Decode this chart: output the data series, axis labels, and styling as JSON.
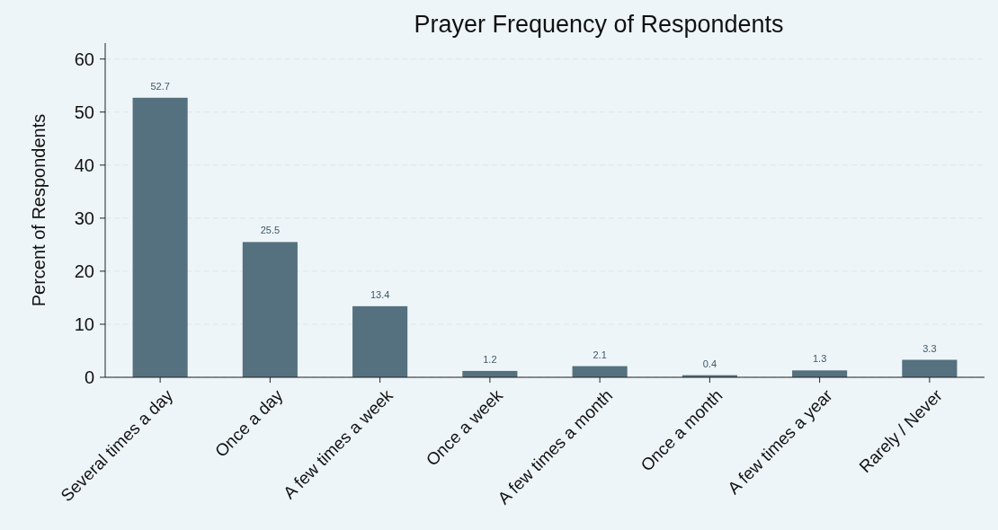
{
  "chart_data": {
    "type": "bar",
    "title": "Prayer Frequency of Respondents",
    "ylabel": "Percent of Respondents",
    "categories": [
      "Several times a day",
      "Once a day",
      "A few times a week",
      "Once a week",
      "A few times a month",
      "Once a month",
      "A few times a year",
      "Rarely / Never"
    ],
    "values": [
      52.7,
      25.5,
      13.4,
      1.2,
      2.1,
      0.4,
      1.3,
      3.3
    ],
    "color": "#55717f",
    "ylim": [
      0,
      63
    ],
    "yticks": [
      0,
      10,
      20,
      30,
      40,
      50,
      60
    ],
    "grid": "y",
    "data_labels": true
  }
}
